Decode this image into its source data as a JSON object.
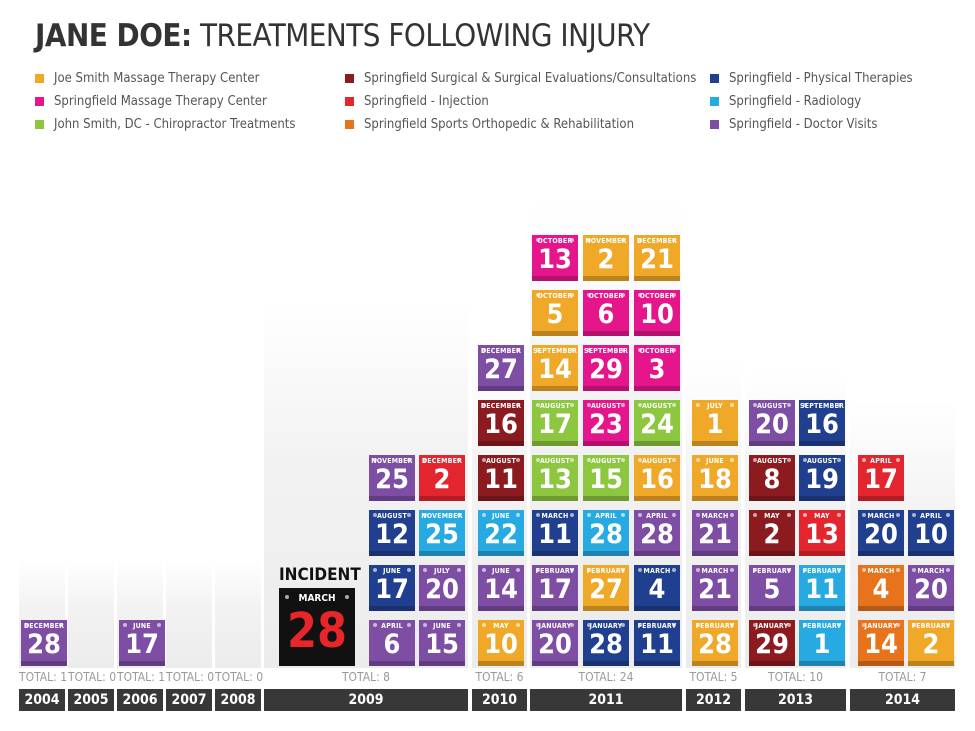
{
  "title": {
    "name": "JANE DOE:",
    "rest": "TREATMENTS FOLLOWING INJURY"
  },
  "legend": [
    {
      "key": "jsmt",
      "label": "Joe Smith Massage Therapy Center",
      "color": "#efa828"
    },
    {
      "key": "smt",
      "label": "Springfield Massage Therapy Center",
      "color": "#e5168c"
    },
    {
      "key": "chiro",
      "label": "John Smith, DC - Chiropractor Treatments",
      "color": "#8dc63f"
    },
    {
      "key": "surg",
      "label": "Springfield Surgical & Surgical Evaluations/Consultations",
      "color": "#8b1b1f"
    },
    {
      "key": "inj",
      "label": "Springfield - Injection",
      "color": "#e3262d"
    },
    {
      "key": "ortho",
      "label": "Springfield Sports Orthopedic & Rehabilitation",
      "color": "#e8731d"
    },
    {
      "key": "pt",
      "label": "Springfield - Physical Therapies",
      "color": "#20408f"
    },
    {
      "key": "rad",
      "label": "Springfield - Radiology",
      "color": "#27aae1"
    },
    {
      "key": "doc",
      "label": "Springfield - Doctor Visits",
      "color": "#7e4ea4"
    }
  ],
  "incident": {
    "label": "INCIDENT",
    "month": "MARCH",
    "day": "28"
  },
  "chart_data": {
    "type": "table",
    "title": "JANE DOE: TREATMENTS FOLLOWING INJURY",
    "years": [
      {
        "year": "2004",
        "total": "TOTAL: 1",
        "stacks": [
          [
            {
              "m": "DECEMBER",
              "d": "28",
              "c": "doc"
            }
          ]
        ]
      },
      {
        "year": "2005",
        "total": "TOTAL: 0",
        "stacks": []
      },
      {
        "year": "2006",
        "total": "TOTAL: 1",
        "stacks": [
          [
            {
              "m": "JUNE",
              "d": "17",
              "c": "doc"
            }
          ]
        ]
      },
      {
        "year": "2007",
        "total": "TOTAL: 0",
        "stacks": []
      },
      {
        "year": "2008",
        "total": "TOTAL: 0",
        "stacks": []
      },
      {
        "year": "2009",
        "total": "TOTAL: 8",
        "stacks": [
          [
            {
              "m": "APRIL",
              "d": "6",
              "c": "doc"
            },
            {
              "m": "JUNE",
              "d": "17",
              "c": "pt"
            },
            {
              "m": "AUGUST",
              "d": "12",
              "c": "pt"
            },
            {
              "m": "NOVEMBER",
              "d": "25",
              "c": "doc"
            }
          ],
          [
            {
              "m": "JUNE",
              "d": "15",
              "c": "doc"
            },
            {
              "m": "JULY",
              "d": "20",
              "c": "doc"
            },
            {
              "m": "NOVEMBER",
              "d": "25",
              "c": "rad"
            },
            {
              "m": "DECEMBER",
              "d": "2",
              "c": "inj"
            }
          ]
        ]
      },
      {
        "year": "2010",
        "total": "TOTAL: 6",
        "stacks": [
          [
            {
              "m": "MAY",
              "d": "10",
              "c": "jsmt"
            },
            {
              "m": "JUNE",
              "d": "14",
              "c": "doc"
            },
            {
              "m": "JUNE",
              "d": "22",
              "c": "rad"
            },
            {
              "m": "AUGUST",
              "d": "11",
              "c": "surg"
            },
            {
              "m": "DECEMBER",
              "d": "16",
              "c": "surg"
            },
            {
              "m": "DECEMBER",
              "d": "27",
              "c": "doc"
            }
          ]
        ]
      },
      {
        "year": "2011",
        "total": "TOTAL: 24",
        "stacks": [
          [
            {
              "m": "JANUARY",
              "d": "20",
              "c": "doc"
            },
            {
              "m": "FEBRUARY",
              "d": "17",
              "c": "doc"
            },
            {
              "m": "MARCH",
              "d": "11",
              "c": "pt"
            },
            {
              "m": "AUGUST",
              "d": "13",
              "c": "chiro"
            },
            {
              "m": "AUGUST",
              "d": "17",
              "c": "chiro"
            },
            {
              "m": "SEPTEMBER",
              "d": "14",
              "c": "jsmt"
            },
            {
              "m": "OCTOBER",
              "d": "5",
              "c": "jsmt"
            },
            {
              "m": "OCTOBER",
              "d": "13",
              "c": "smt"
            }
          ],
          [
            {
              "m": "JANUARY",
              "d": "28",
              "c": "pt"
            },
            {
              "m": "FEBRUARY",
              "d": "27",
              "c": "jsmt"
            },
            {
              "m": "APRIL",
              "d": "28",
              "c": "rad"
            },
            {
              "m": "AUGUST",
              "d": "15",
              "c": "chiro"
            },
            {
              "m": "AUGUST",
              "d": "23",
              "c": "smt"
            },
            {
              "m": "SEPTEMBER",
              "d": "29",
              "c": "smt"
            },
            {
              "m": "OCTOBER",
              "d": "6",
              "c": "smt"
            },
            {
              "m": "NOVEMBER",
              "d": "2",
              "c": "jsmt"
            }
          ],
          [
            {
              "m": "FEBRUARY",
              "d": "11",
              "c": "pt"
            },
            {
              "m": "MARCH",
              "d": "4",
              "c": "pt"
            },
            {
              "m": "APRIL",
              "d": "28",
              "c": "doc"
            },
            {
              "m": "AUGUST",
              "d": "16",
              "c": "jsmt"
            },
            {
              "m": "AUGUST",
              "d": "24",
              "c": "chiro"
            },
            {
              "m": "OCTOBER",
              "d": "3",
              "c": "smt"
            },
            {
              "m": "OCTOBER",
              "d": "10",
              "c": "smt"
            },
            {
              "m": "DECEMBER",
              "d": "21",
              "c": "jsmt"
            }
          ]
        ]
      },
      {
        "year": "2012",
        "total": "TOTAL: 5",
        "stacks": [
          [
            {
              "m": "FEBRUARY",
              "d": "28",
              "c": "jsmt"
            },
            {
              "m": "MARCH",
              "d": "21",
              "c": "doc"
            },
            {
              "m": "MARCH",
              "d": "21",
              "c": "doc"
            },
            {
              "m": "JUNE",
              "d": "18",
              "c": "jsmt"
            },
            {
              "m": "JULY",
              "d": "1",
              "c": "jsmt"
            }
          ]
        ]
      },
      {
        "year": "2013",
        "total": "TOTAL: 10",
        "stacks": [
          [
            {
              "m": "JANUARY",
              "d": "29",
              "c": "surg"
            },
            {
              "m": "FEBRUARY",
              "d": "5",
              "c": "doc"
            },
            {
              "m": "MAY",
              "d": "2",
              "c": "surg"
            },
            {
              "m": "AUGUST",
              "d": "8",
              "c": "surg"
            },
            {
              "m": "AUGUST",
              "d": "20",
              "c": "doc"
            }
          ],
          [
            {
              "m": "FEBRUARY",
              "d": "1",
              "c": "rad"
            },
            {
              "m": "FEBRUARY",
              "d": "11",
              "c": "rad"
            },
            {
              "m": "MAY",
              "d": "13",
              "c": "inj"
            },
            {
              "m": "AUGUST",
              "d": "19",
              "c": "pt"
            },
            {
              "m": "SEPTEMBER",
              "d": "16",
              "c": "pt"
            }
          ]
        ]
      },
      {
        "year": "2014",
        "total": "TOTAL: 7",
        "stacks": [
          [
            {
              "m": "JANUARY",
              "d": "14",
              "c": "ortho"
            },
            {
              "m": "MARCH",
              "d": "4",
              "c": "ortho"
            },
            {
              "m": "MARCH",
              "d": "20",
              "c": "pt"
            },
            {
              "m": "APRIL",
              "d": "17",
              "c": "inj"
            }
          ],
          [
            {
              "m": "FEBRUARY",
              "d": "2",
              "c": "jsmt"
            },
            {
              "m": "MARCH",
              "d": "20",
              "c": "doc"
            },
            {
              "m": "APRIL",
              "d": "10",
              "c": "pt"
            }
          ]
        ]
      }
    ]
  }
}
